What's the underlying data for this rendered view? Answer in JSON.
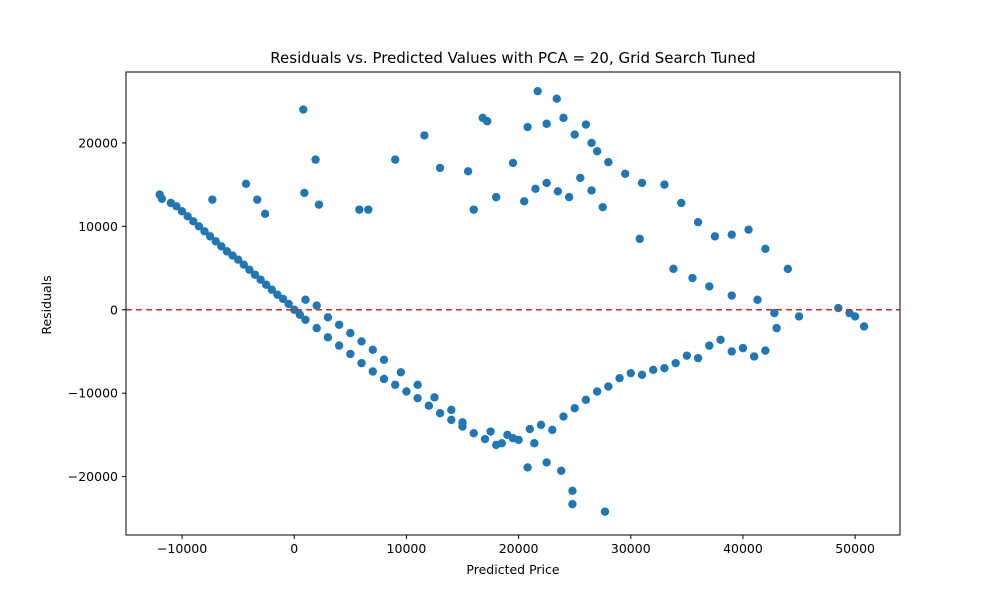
{
  "chart_data": {
    "type": "scatter",
    "title": "Residuals vs. Predicted Values with PCA = 20, Grid Search Tuned",
    "xlabel": "Predicted Price",
    "ylabel": "Residuals",
    "xlim": [
      -15000,
      54000
    ],
    "ylim": [
      -27000,
      28500
    ],
    "xticks": [
      -10000,
      0,
      10000,
      20000,
      30000,
      40000,
      50000
    ],
    "xtick_labels": [
      "−10000",
      "0",
      "10000",
      "20000",
      "30000",
      "40000",
      "50000"
    ],
    "yticks": [
      -20000,
      -10000,
      0,
      10000,
      20000
    ],
    "ytick_labels": [
      "−20000",
      "−10000",
      "0",
      "10000",
      "20000"
    ],
    "grid": false,
    "marker_color": "#1f77b4",
    "reference_line": {
      "y": 0,
      "color": "#d62728",
      "style": "dashed"
    },
    "series": [
      {
        "x": [
          -12000,
          -11800,
          -11000,
          -10500,
          -10000,
          -9500,
          -9000,
          -8500,
          -8000,
          -7500,
          -7000,
          -6500,
          -6000,
          -5500,
          -5000,
          -4500,
          -4000,
          -3500,
          -3000,
          -2500,
          -2000,
          -1500,
          -1000,
          -500,
          0,
          500,
          1000,
          2000,
          3000,
          4000,
          5000,
          6000,
          7000,
          8000,
          9000,
          10000,
          11000,
          12000,
          13000,
          14000,
          15000,
          16000,
          17000,
          18000,
          19000,
          20000,
          21000,
          22000,
          23000,
          24000,
          25000,
          26000,
          27000,
          28000,
          29000,
          30000,
          31000,
          32000,
          33000,
          34000,
          35000,
          36000,
          37000,
          38000,
          39000,
          40000,
          41000,
          42000,
          43000,
          44000,
          45000,
          48500,
          49500,
          50000,
          50800,
          -7300,
          -4300,
          -2600,
          -3300,
          800,
          1900,
          900,
          2200,
          5800,
          6600,
          9000,
          11600,
          13000,
          15500,
          16800,
          17200,
          19500,
          20800,
          21700,
          22500,
          23400,
          24000,
          25000,
          26000,
          26500,
          27000,
          28000,
          29500,
          31000,
          33000,
          34500,
          36000,
          37500,
          39000,
          40500,
          42000,
          16000,
          18000,
          20500,
          21500,
          22500,
          23500,
          24500,
          25500,
          26500,
          27500,
          30800,
          33800,
          35500,
          37000,
          39000,
          41300,
          42800,
          24800,
          24800,
          27700,
          20800,
          21400,
          22500,
          23800,
          17500,
          18500,
          19500,
          15000,
          14000,
          12500,
          11000,
          9500,
          8000,
          7000,
          6000,
          5000,
          4000,
          3000,
          2000,
          1000
        ],
        "y": [
          13800,
          13300,
          12800,
          12400,
          11800,
          11200,
          10600,
          10000,
          9400,
          8800,
          8200,
          7600,
          7000,
          6500,
          6000,
          5400,
          4800,
          4200,
          3600,
          3000,
          2400,
          1800,
          1300,
          700,
          0,
          -600,
          -1200,
          -2200,
          -3300,
          -4300,
          -5300,
          -6400,
          -7400,
          -8300,
          -9000,
          -9800,
          -10600,
          -11500,
          -12400,
          -13200,
          -14000,
          -14800,
          -15500,
          -16200,
          -15000,
          -15600,
          -14300,
          -13800,
          -14400,
          -12800,
          -11800,
          -10800,
          -9800,
          -9200,
          -8200,
          -7600,
          -7800,
          -7200,
          -7000,
          -6400,
          -5500,
          -5800,
          -4300,
          -3600,
          -5000,
          -4600,
          -5600,
          -4900,
          -2200,
          4900,
          -800,
          200,
          -400,
          -800,
          -2000,
          13200,
          15100,
          11500,
          13200,
          24000,
          18000,
          14000,
          12600,
          12000,
          12000,
          18000,
          20900,
          17000,
          16600,
          23000,
          22600,
          17600,
          21900,
          26200,
          22300,
          25300,
          23000,
          21000,
          22200,
          20000,
          19000,
          17700,
          16300,
          15200,
          15000,
          12800,
          10500,
          8800,
          9000,
          9600,
          7300,
          12000,
          13500,
          13000,
          14500,
          15200,
          14200,
          13500,
          15800,
          14300,
          12300,
          8500,
          4900,
          3800,
          2800,
          1700,
          1200,
          -400,
          -21700,
          -23300,
          -24200,
          -18900,
          -16000,
          -18300,
          -19300,
          -14600,
          -16000,
          -15400,
          -13500,
          -12000,
          -10500,
          -9000,
          -7500,
          -6000,
          -4800,
          -3800,
          -2800,
          -1800,
          -900,
          500,
          1200
        ]
      }
    ]
  }
}
